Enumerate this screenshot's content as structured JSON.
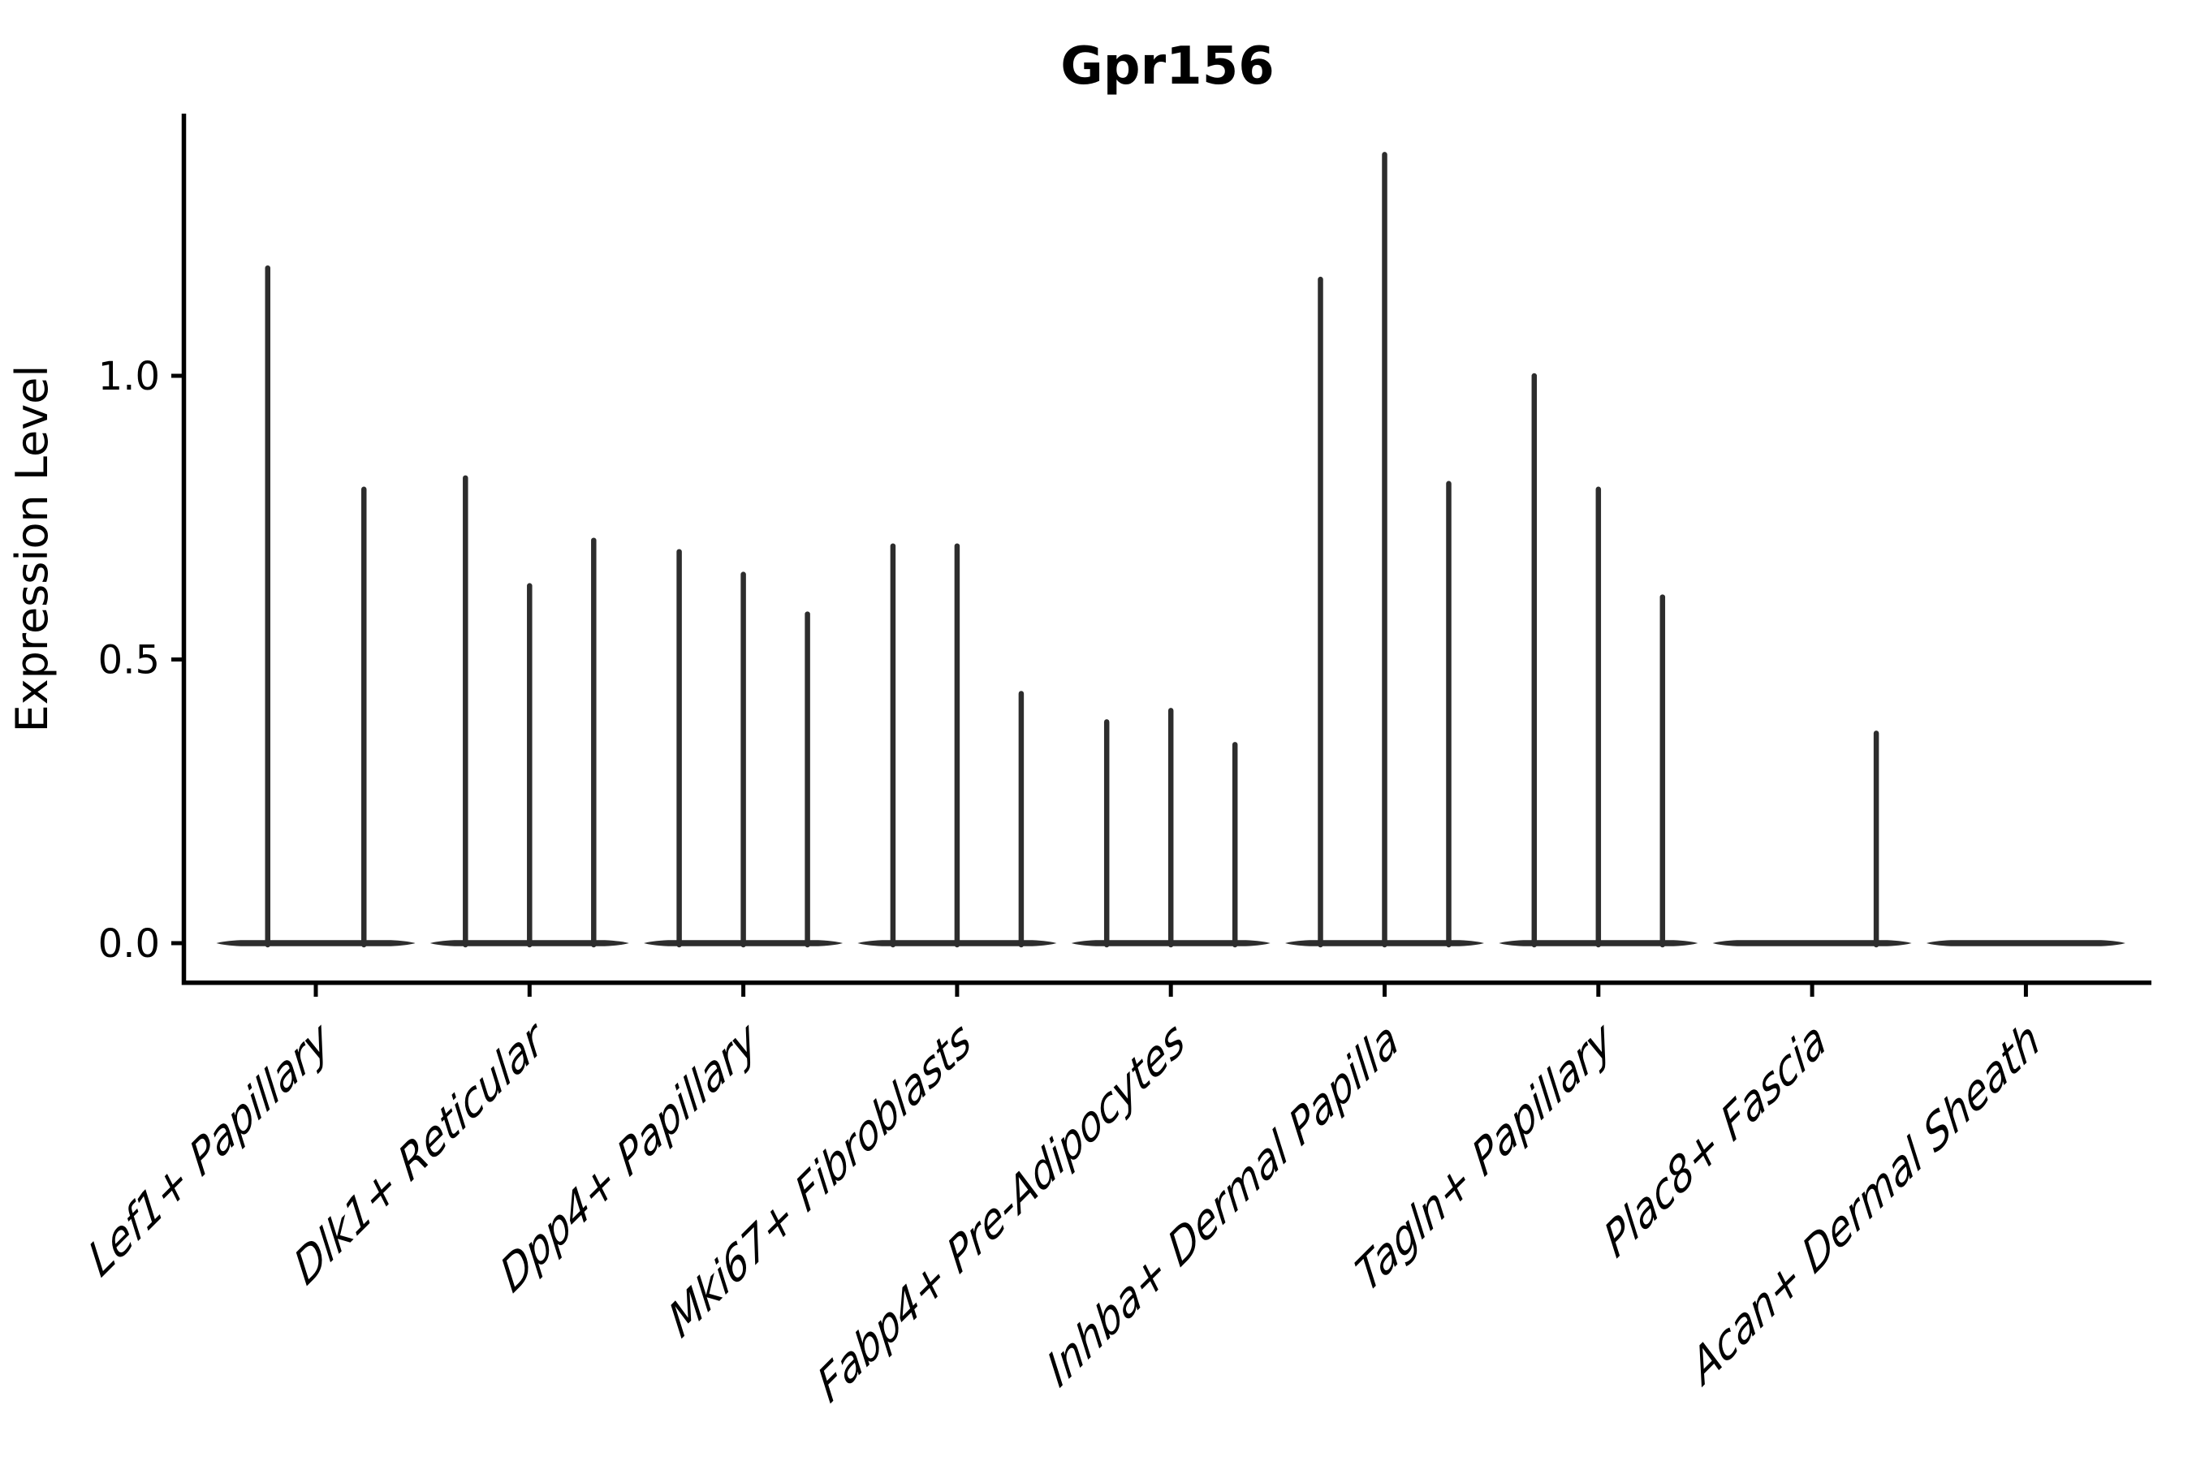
{
  "title": "Gpr156",
  "y_axis": {
    "label": "Expression Level",
    "tick_labels": [
      "0.0",
      "0.5",
      "1.0"
    ]
  },
  "chart_data": {
    "type": "violin",
    "title": "Gpr156",
    "xlabel": "",
    "ylabel": "Expression Level",
    "ylim": [
      0,
      1.46
    ],
    "yticks": [
      0.0,
      0.5,
      1.0
    ],
    "grid": false,
    "legend": null,
    "description": "Grouped violin plot of Gpr156 expression; violins are collapsed flat at 0 with thin spikes reaching each violin's maximum expression value",
    "categories": [
      "Lef1+ Papillary",
      "Dlk1+ Reticular",
      "Dpp4+ Papillary",
      "Mki67+ Fibroblasts",
      "Fabp4+ Pre-Adipocytes",
      "Inhba+ Dermal Papilla",
      "Tagln+ Papillary",
      "Plac8+ Fascia",
      "Acan+ Dermal Sheath"
    ],
    "series": [
      {
        "category": "Lef1+ Papillary",
        "violin_count": 2,
        "max_expression": [
          1.19,
          0.8
        ]
      },
      {
        "category": "Dlk1+ Reticular",
        "violin_count": 3,
        "max_expression": [
          0.82,
          0.63,
          0.71
        ]
      },
      {
        "category": "Dpp4+ Papillary",
        "violin_count": 3,
        "max_expression": [
          0.69,
          0.65,
          0.58
        ]
      },
      {
        "category": "Mki67+ Fibroblasts",
        "violin_count": 3,
        "max_expression": [
          0.7,
          0.7,
          0.44
        ]
      },
      {
        "category": "Fabp4+ Pre-Adipocytes",
        "violin_count": 3,
        "max_expression": [
          0.39,
          0.41,
          0.35
        ]
      },
      {
        "category": "Inhba+ Dermal Papilla",
        "violin_count": 3,
        "max_expression": [
          1.17,
          1.39,
          0.81
        ]
      },
      {
        "category": "Tagln+ Papillary",
        "violin_count": 3,
        "max_expression": [
          1.0,
          0.8,
          0.61
        ]
      },
      {
        "category": "Plac8+ Fascia",
        "violin_count": 3,
        "max_expression": [
          0.0,
          0.0,
          0.37
        ]
      },
      {
        "category": "Acan+ Dermal Sheath",
        "violin_count": 3,
        "max_expression": [
          0.0,
          0.0,
          0.0
        ]
      }
    ],
    "colors": {
      "violin": "#2d2d2d",
      "axis": "#000000",
      "text": "#000000",
      "background": "#ffffff"
    }
  }
}
